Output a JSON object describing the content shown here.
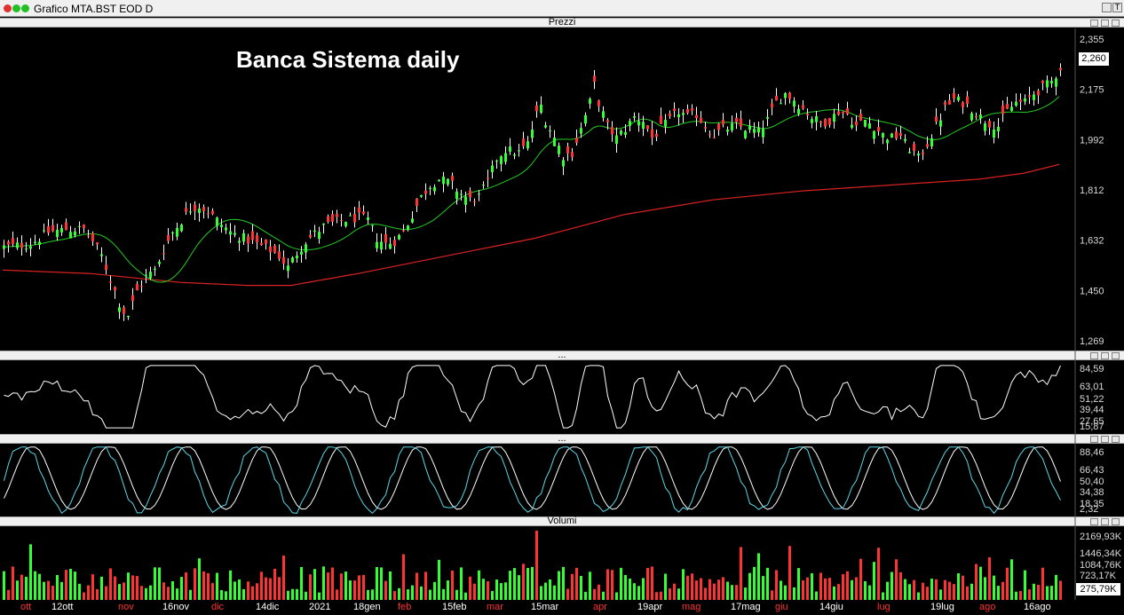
{
  "window": {
    "title": "Grafico MTA.BST EOD D",
    "dot_colors": [
      "#e03030",
      "#22c022",
      "#22c022"
    ],
    "right_letter": "T"
  },
  "panels": {
    "price": "Prezzi",
    "volume": "Volumi",
    "separator": "..."
  },
  "chart_title": "Banca Sistema daily",
  "current_price": "2,260",
  "current_volume": "275,79K",
  "price_ticks": [
    "2,355",
    "2,175",
    "1,992",
    "1,812",
    "1,632",
    "1,450",
    "1,269"
  ],
  "rsi_ticks": [
    "84,59",
    "63,01",
    "51,22",
    "39,44",
    "27,65",
    "15,87"
  ],
  "stoch_ticks": [
    "88,46",
    "66,43",
    "50,40",
    "34,38",
    "18,35",
    "2,32"
  ],
  "vol_ticks": [
    "2169,93K",
    "1446,34K",
    "1084,76K",
    "723,17K"
  ],
  "date_labels": [
    {
      "t": "ott",
      "i": 5,
      "c": "#ff3030"
    },
    {
      "t": "12ott",
      "i": 12,
      "c": "#ffffff"
    },
    {
      "t": "nov",
      "i": 27,
      "c": "#ff3030"
    },
    {
      "t": "16nov",
      "i": 37,
      "c": "#ffffff"
    },
    {
      "t": "dic",
      "i": 48,
      "c": "#ff3030"
    },
    {
      "t": "14dic",
      "i": 58,
      "c": "#ffffff"
    },
    {
      "t": "2021",
      "i": 70,
      "c": "#ffffff"
    },
    {
      "t": "18gen",
      "i": 80,
      "c": "#ffffff"
    },
    {
      "t": "feb",
      "i": 90,
      "c": "#ff3030"
    },
    {
      "t": "15feb",
      "i": 100,
      "c": "#ffffff"
    },
    {
      "t": "mar",
      "i": 110,
      "c": "#ff3030"
    },
    {
      "t": "15mar",
      "i": 120,
      "c": "#ffffff"
    },
    {
      "t": "apr",
      "i": 134,
      "c": "#ff3030"
    },
    {
      "t": "19apr",
      "i": 144,
      "c": "#ffffff"
    },
    {
      "t": "mag",
      "i": 154,
      "c": "#ff3030"
    },
    {
      "t": "17mag",
      "i": 165,
      "c": "#ffffff"
    },
    {
      "t": "giu",
      "i": 175,
      "c": "#ff3030"
    },
    {
      "t": "14giu",
      "i": 185,
      "c": "#ffffff"
    },
    {
      "t": "lug",
      "i": 198,
      "c": "#ff3030"
    },
    {
      "t": "19lug",
      "i": 210,
      "c": "#ffffff"
    },
    {
      "t": "ago",
      "i": 221,
      "c": "#ff3030"
    },
    {
      "t": "16ago",
      "i": 231,
      "c": "#ffffff"
    }
  ],
  "chart_data": {
    "type": "candlestick",
    "title": "Banca Sistema daily",
    "ylim": [
      1.269,
      2.355
    ],
    "colors": {
      "up": "#33ff33",
      "down": "#ff3333",
      "wick": "#ffffff",
      "ma_short": "#22cc22",
      "ma_long": "#dd2222",
      "oscillator": "#ffffff",
      "stoch_k": "#5ad8e8",
      "stoch_d": "#ffffff"
    },
    "keypoints": [
      [
        0,
        1.65
      ],
      [
        6,
        1.66
      ],
      [
        10,
        1.7
      ],
      [
        14,
        1.71
      ],
      [
        18,
        1.71
      ],
      [
        20,
        1.67
      ],
      [
        22,
        1.62
      ],
      [
        24,
        1.54
      ],
      [
        26,
        1.46
      ],
      [
        27,
        1.43
      ],
      [
        28,
        1.42
      ],
      [
        30,
        1.5
      ],
      [
        32,
        1.55
      ],
      [
        34,
        1.57
      ],
      [
        36,
        1.64
      ],
      [
        38,
        1.7
      ],
      [
        40,
        1.74
      ],
      [
        42,
        1.78
      ],
      [
        44,
        1.79
      ],
      [
        46,
        1.77
      ],
      [
        48,
        1.74
      ],
      [
        51,
        1.7
      ],
      [
        54,
        1.68
      ],
      [
        57,
        1.66
      ],
      [
        60,
        1.64
      ],
      [
        62,
        1.62
      ],
      [
        63,
        1.6
      ],
      [
        64,
        1.58
      ],
      [
        66,
        1.63
      ],
      [
        68,
        1.67
      ],
      [
        72,
        1.72
      ],
      [
        76,
        1.74
      ],
      [
        80,
        1.75
      ],
      [
        82,
        1.74
      ],
      [
        84,
        1.68
      ],
      [
        86,
        1.66
      ],
      [
        88,
        1.67
      ],
      [
        90,
        1.7
      ],
      [
        92,
        1.76
      ],
      [
        94,
        1.82
      ],
      [
        96,
        1.86
      ],
      [
        98,
        1.88
      ],
      [
        100,
        1.87
      ],
      [
        101,
        1.86
      ],
      [
        103,
        1.83
      ],
      [
        105,
        1.81
      ],
      [
        107,
        1.82
      ],
      [
        109,
        1.87
      ],
      [
        111,
        1.95
      ],
      [
        113,
        1.98
      ],
      [
        116,
        1.97
      ],
      [
        118,
        2.0
      ],
      [
        120,
        2.1
      ],
      [
        121,
        2.13
      ],
      [
        122,
        2.08
      ],
      [
        124,
        2.02
      ],
      [
        126,
        1.96
      ],
      [
        128,
        1.97
      ],
      [
        130,
        2.05
      ],
      [
        132,
        2.14
      ],
      [
        133,
        2.2
      ],
      [
        134,
        2.14
      ],
      [
        136,
        2.06
      ],
      [
        138,
        2.02
      ],
      [
        140,
        2.05
      ],
      [
        142,
        2.09
      ],
      [
        144,
        2.08
      ],
      [
        146,
        2.02
      ],
      [
        148,
        2.05
      ],
      [
        150,
        2.08
      ],
      [
        152,
        2.11
      ],
      [
        154,
        2.09
      ],
      [
        156,
        2.1
      ],
      [
        158,
        2.06
      ],
      [
        160,
        2.03
      ],
      [
        162,
        2.05
      ],
      [
        165,
        2.06
      ],
      [
        168,
        2.05
      ],
      [
        170,
        2.04
      ],
      [
        172,
        2.08
      ],
      [
        174,
        2.14
      ],
      [
        176,
        2.17
      ],
      [
        178,
        2.15
      ],
      [
        180,
        2.12
      ],
      [
        182,
        2.09
      ],
      [
        184,
        2.07
      ],
      [
        186,
        2.08
      ],
      [
        188,
        2.11
      ],
      [
        190,
        2.1
      ],
      [
        192,
        2.06
      ],
      [
        194,
        2.08
      ],
      [
        196,
        2.06
      ],
      [
        198,
        2.03
      ],
      [
        200,
        2.02
      ],
      [
        202,
        2.03
      ],
      [
        203,
        2.0
      ],
      [
        205,
        1.97
      ],
      [
        206,
        1.95
      ],
      [
        208,
        2.0
      ],
      [
        210,
        2.06
      ],
      [
        212,
        2.12
      ],
      [
        214,
        2.15
      ],
      [
        216,
        2.14
      ],
      [
        218,
        2.12
      ],
      [
        220,
        2.09
      ],
      [
        222,
        2.07
      ],
      [
        224,
        2.06
      ],
      [
        226,
        2.11
      ],
      [
        228,
        2.14
      ],
      [
        230,
        2.14
      ],
      [
        232,
        2.17
      ],
      [
        234,
        2.19
      ],
      [
        236,
        2.21
      ],
      [
        238,
        2.26
      ]
    ],
    "ma_long_keypoints": [
      [
        0,
        1.572
      ],
      [
        20,
        1.56
      ],
      [
        40,
        1.53
      ],
      [
        55,
        1.52
      ],
      [
        65,
        1.52
      ],
      [
        80,
        1.56
      ],
      [
        100,
        1.62
      ],
      [
        120,
        1.68
      ],
      [
        140,
        1.76
      ],
      [
        160,
        1.81
      ],
      [
        180,
        1.84
      ],
      [
        200,
        1.86
      ],
      [
        220,
        1.88
      ],
      [
        230,
        1.9
      ],
      [
        238,
        1.93
      ]
    ]
  }
}
